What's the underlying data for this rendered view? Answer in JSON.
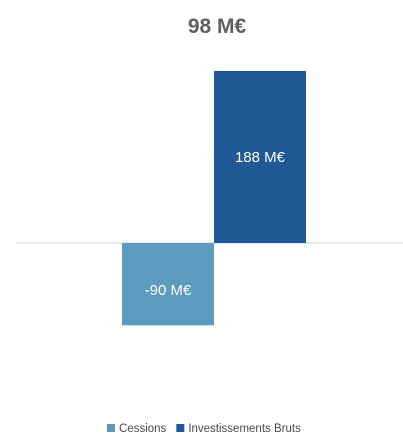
{
  "chart_data": {
    "type": "bar",
    "title": "98 M€",
    "categories": [
      ""
    ],
    "series": [
      {
        "name": "Cessions",
        "values": [
          -90
        ],
        "label": "-90 M€",
        "color": "#5b9bbd"
      },
      {
        "name": "Investissements Bruts",
        "values": [
          188
        ],
        "label": "188 M€",
        "color": "#1f5a96"
      }
    ],
    "ylim": [
      -130,
      200
    ],
    "grid": false,
    "legend": "bottom",
    "baseline_color": "#d0d0d0"
  }
}
